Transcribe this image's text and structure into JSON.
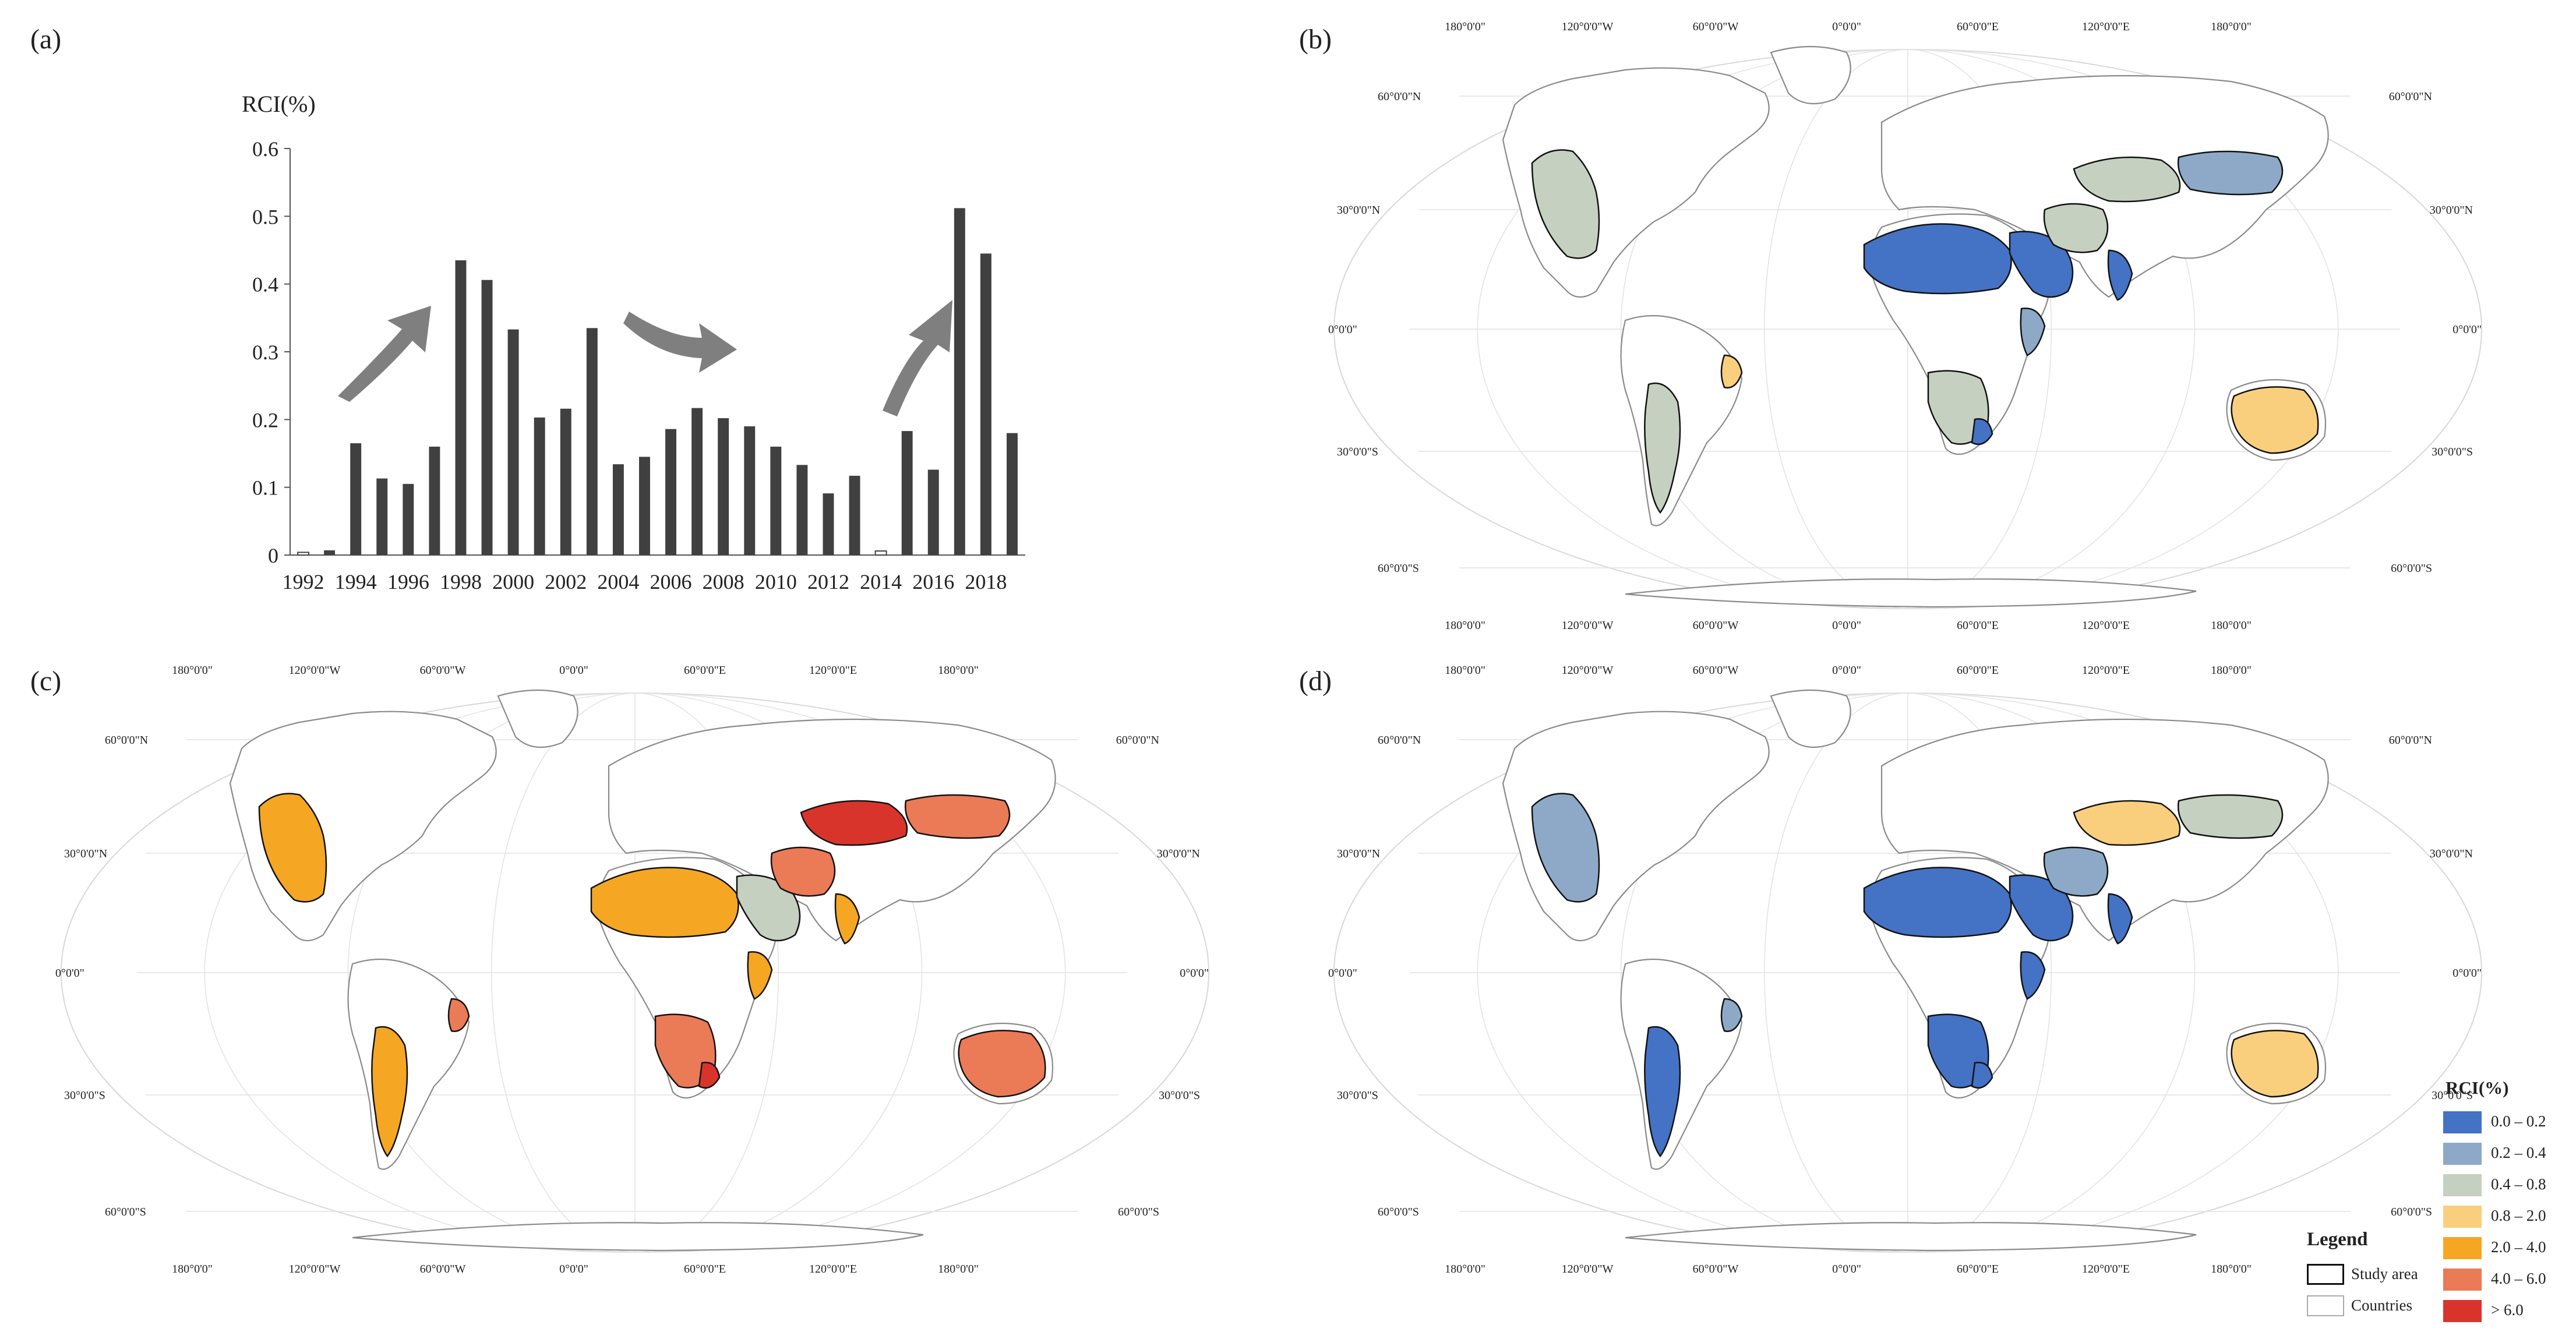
{
  "panels": {
    "a": "(a)",
    "b": "(b)",
    "c": "(c)",
    "d": "(d)"
  },
  "chart_data": {
    "type": "bar",
    "ylabel": "RCI(%)",
    "ylim": [
      0,
      0.6
    ],
    "yticks": [
      "0",
      "0.1",
      "0.2",
      "0.3",
      "0.4",
      "0.5",
      "0.6"
    ],
    "xticks": [
      "1992",
      "1994",
      "1996",
      "1998",
      "2000",
      "2002",
      "2004",
      "2006",
      "2008",
      "2010",
      "2012",
      "2014",
      "2016",
      "2018"
    ],
    "categories": [
      "1992",
      "1993",
      "1994",
      "1995",
      "1996",
      "1997",
      "1998",
      "1999",
      "2000",
      "2001",
      "2002",
      "2003",
      "2004",
      "2005",
      "2006",
      "2007",
      "2008",
      "2009",
      "2010",
      "2011",
      "2012",
      "2013",
      "2014",
      "2015",
      "2016",
      "2017",
      "2018",
      "2019"
    ],
    "values": [
      0.004,
      0.007,
      0.165,
      0.113,
      0.105,
      0.16,
      0.435,
      0.406,
      0.333,
      0.203,
      0.216,
      0.335,
      0.134,
      0.145,
      0.186,
      0.217,
      0.202,
      0.19,
      0.16,
      0.133,
      0.091,
      0.117,
      0.006,
      0.183,
      0.126,
      0.512,
      0.445,
      0.18
    ],
    "hollow_bars": [
      "1992",
      "2014"
    ],
    "bar_color": "#404040",
    "trend_arrows": [
      "up",
      "down",
      "up"
    ],
    "arrow_color": "#7f7f7f"
  },
  "map": {
    "lon_labels": [
      "180°0'0\"",
      "120°0'0\"W",
      "60°0'0\"W",
      "0°0'0\"",
      "60°0'0\"E",
      "120°0'0\"E",
      "180°0'0\""
    ],
    "lat_labels": [
      "60°0'0\"N",
      "30°0'0\"N",
      "0°0'0\"",
      "30°0'0\"S",
      "60°0'0\"S"
    ],
    "region_classes": {
      "b": {
        "north_america": "c3",
        "south_america": "c3",
        "sahara": "c1",
        "arabia": "c1",
        "horn": "c2",
        "southern_africa": "c3",
        "south_africa_east": "c1",
        "central_asia": "c3",
        "mongolia": "c2",
        "iran": "c3",
        "australia": "c4",
        "brazil_ne": "c4",
        "india": "c1"
      },
      "c": {
        "north_america": "c5",
        "south_america": "c5",
        "sahara": "c5",
        "arabia": "c3",
        "horn": "c5",
        "southern_africa": "c6",
        "south_africa_east": "c7",
        "central_asia": "c7",
        "mongolia": "c6",
        "iran": "c6",
        "australia": "c6",
        "brazil_ne": "c6",
        "india": "c5"
      },
      "d": {
        "north_america": "c2",
        "south_america": "c1",
        "sahara": "c1",
        "arabia": "c1",
        "horn": "c1",
        "southern_africa": "c1",
        "south_africa_east": "c1",
        "central_asia": "c4",
        "mongolia": "c3",
        "iran": "c2",
        "australia": "c4",
        "brazil_ne": "c2",
        "india": "c1"
      }
    }
  },
  "legend": {
    "title": "RCI(%)",
    "classes": [
      {
        "id": "c1",
        "label": "0.0 – 0.2",
        "color": "#4472c4"
      },
      {
        "id": "c2",
        "label": "0.2 – 0.4",
        "color": "#8ea9c8"
      },
      {
        "id": "c3",
        "label": "0.4 – 0.8",
        "color": "#c5d0c0"
      },
      {
        "id": "c4",
        "label": "0.8 – 2.0",
        "color": "#f9cf7d"
      },
      {
        "id": "c5",
        "label": "2.0 – 4.0",
        "color": "#f5a623"
      },
      {
        "id": "c6",
        "label": "4.0 – 6.0",
        "color": "#eb7a57"
      },
      {
        "id": "c7",
        "label": "> 6.0",
        "color": "#d9342b"
      }
    ],
    "key_title": "Legend",
    "study_area": "Study area",
    "countries": "Countries"
  }
}
